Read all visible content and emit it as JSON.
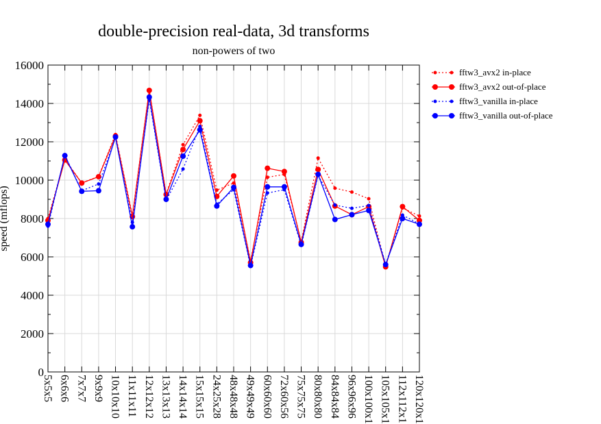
{
  "chart_data": {
    "type": "line",
    "title": "double-precision real-data, 3d transforms",
    "subtitle": "non-powers of two",
    "xlabel": "",
    "ylabel": "speed (mflops)",
    "ylim": [
      0,
      16000
    ],
    "yticks": [
      0,
      2000,
      4000,
      6000,
      8000,
      10000,
      12000,
      14000,
      16000
    ],
    "grid": true,
    "legend_position": "right",
    "categories": [
      "5x5x5",
      "6x6x6",
      "7x7x7",
      "9x9x9",
      "10x10x10",
      "11x11x11",
      "12x12x12",
      "13x13x13",
      "14x14x14",
      "15x15x15",
      "24x25x28",
      "48x48x48",
      "49x49x49",
      "60x60x60",
      "72x60x56",
      "75x75x75",
      "80x80x80",
      "84x84x84",
      "96x96x96",
      "100x100x1",
      "105x105x1",
      "112x112x1",
      "120x120x1"
    ],
    "series": [
      {
        "name": "fftw3_avx2 in-place",
        "color": "#ff0000",
        "style": "dotted",
        "marker": "small",
        "values": [
          8000,
          11100,
          9850,
          10200,
          12380,
          8150,
          14700,
          9280,
          11850,
          13380,
          9480,
          9850,
          5820,
          10150,
          10300,
          6800,
          11150,
          9580,
          9380,
          9030,
          5500,
          8550,
          8130
        ]
      },
      {
        "name": "fftw3_avx2 out-of-place",
        "color": "#ff0000",
        "style": "solid",
        "marker": "large",
        "values": [
          7900,
          11050,
          9850,
          10180,
          12300,
          8100,
          14680,
          9250,
          11600,
          13100,
          9150,
          10220,
          5700,
          10620,
          10450,
          6750,
          10560,
          8650,
          8200,
          8620,
          5480,
          8620,
          7900
        ]
      },
      {
        "name": "fftw3_vanilla in-place",
        "color": "#0000ff",
        "style": "dotted",
        "marker": "small",
        "values": [
          7600,
          11300,
          9450,
          9800,
          12200,
          7800,
          14200,
          8950,
          10580,
          12800,
          8750,
          9500,
          5500,
          9330,
          9500,
          6600,
          10250,
          8700,
          8530,
          8680,
          5620,
          8180,
          7720
        ]
      },
      {
        "name": "fftw3_vanilla out-of-place",
        "color": "#0000ff",
        "style": "solid",
        "marker": "large",
        "values": [
          7700,
          11280,
          9420,
          9450,
          12250,
          7570,
          14330,
          9000,
          11250,
          12620,
          8650,
          9620,
          5550,
          9650,
          9650,
          6650,
          10300,
          7950,
          8200,
          8420,
          5600,
          8000,
          7700
        ]
      }
    ]
  }
}
